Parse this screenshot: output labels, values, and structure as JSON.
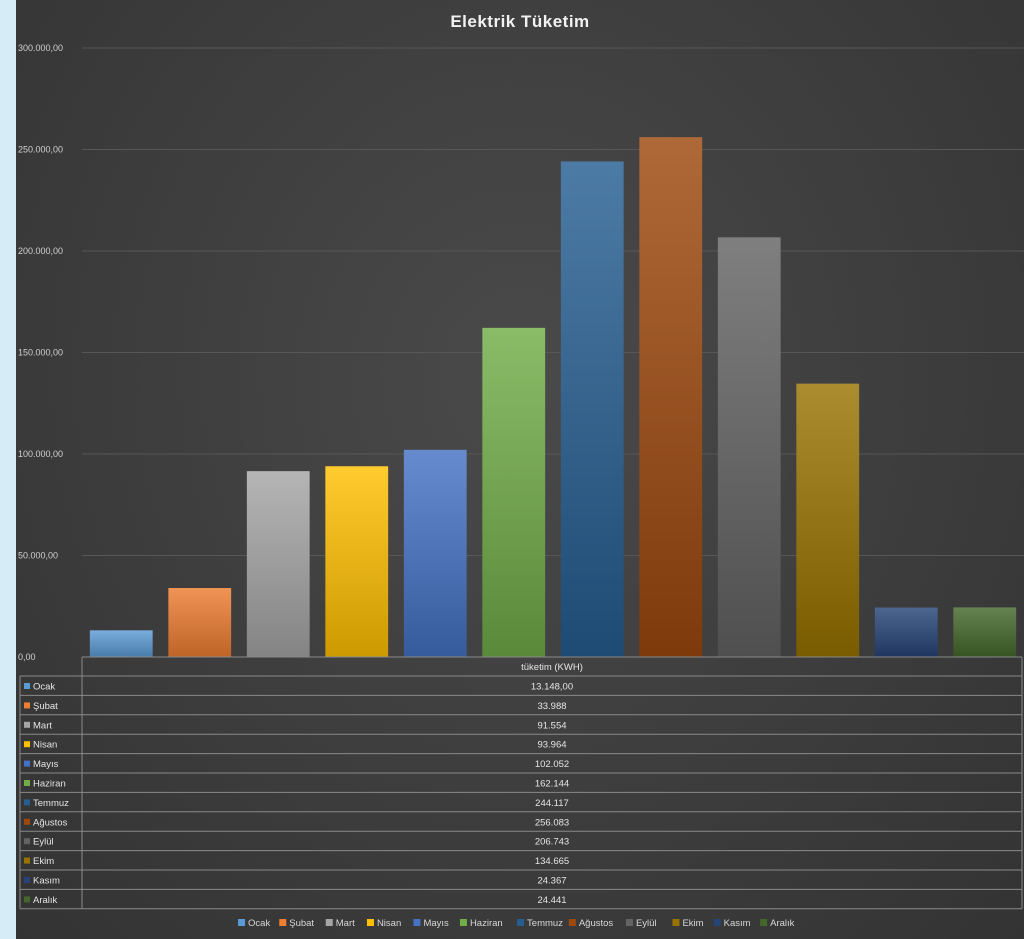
{
  "chart_data": {
    "type": "bar",
    "title": "Elektrik Tüketim",
    "categories": [
      "Ocak",
      "Şubat",
      "Mart",
      "Nisan",
      "Mayıs",
      "Haziran",
      "Temmuz",
      "Ağustos",
      "Eylül",
      "Ekim",
      "Kasım",
      "Aralık"
    ],
    "display_categories": [
      "Ocak",
      "Şubat",
      "Mart",
      "Nisan",
      "Mayıs",
      "Haziran",
      "Temmuz",
      "Ağustos",
      "Eylül",
      "Ekim",
      "Kasım",
      "Aralık"
    ],
    "values": [
      13148,
      33988,
      91554,
      93964,
      102052,
      162144,
      244117,
      256083,
      206743,
      134665,
      24367,
      24441
    ],
    "value_labels": [
      "13.148,00",
      "33.988",
      "91.554",
      "93.964",
      "102.052",
      "162.144",
      "244.117",
      "256.083",
      "206.743",
      "134.665",
      "24.367",
      "24.441"
    ],
    "colors": [
      "#5b9bd5",
      "#ed7d31",
      "#a5a5a5",
      "#ffc000",
      "#4472c4",
      "#70ad47",
      "#255e91",
      "#9e480e",
      "#636363",
      "#997300",
      "#264478",
      "#43682b"
    ],
    "table_header": "tüketim (KWH)",
    "ylim": [
      0,
      300000
    ],
    "yticks": [
      0,
      50000,
      100000,
      150000,
      200000,
      250000,
      300000
    ],
    "ytick_labels": [
      "0,00",
      "50.000,00",
      "100.000,00",
      "150.000,00",
      "200.000,00",
      "250.000,00",
      "300.000,00"
    ],
    "grid": true,
    "legend_position": "bottom"
  }
}
